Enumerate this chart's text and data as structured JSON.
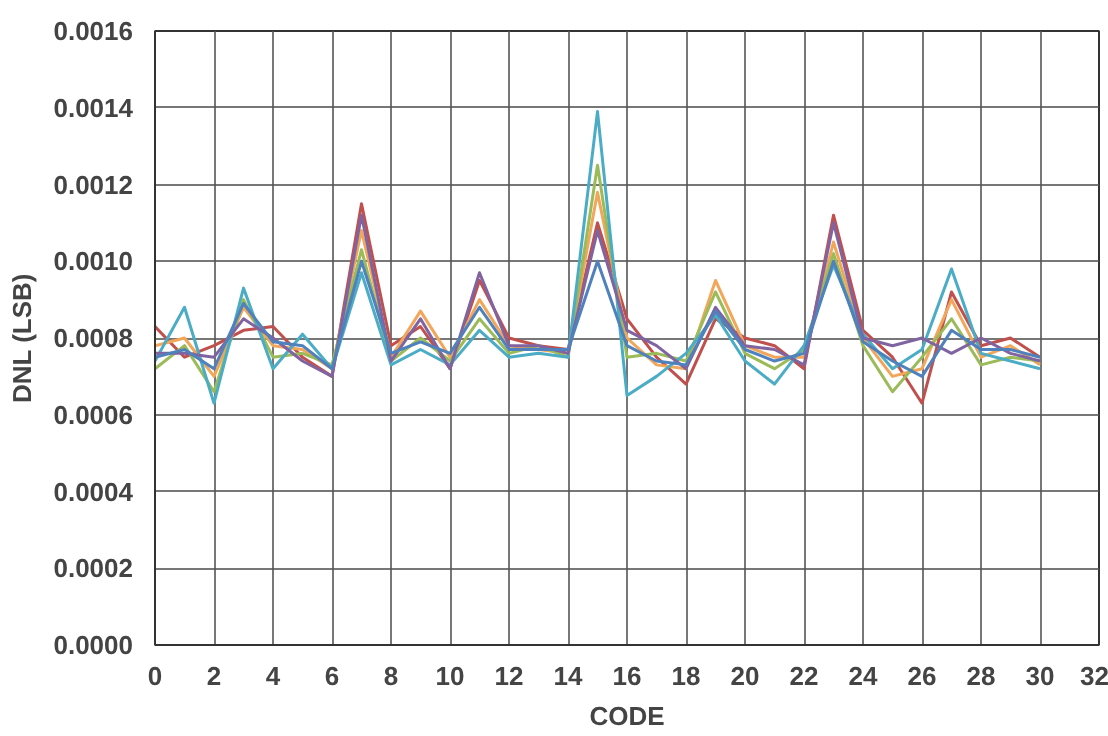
{
  "chart_data": {
    "type": "line",
    "xlabel": "CODE",
    "ylabel": "DNL (LSB)",
    "x": [
      0,
      1,
      2,
      3,
      4,
      5,
      6,
      7,
      8,
      9,
      10,
      11,
      12,
      13,
      14,
      15,
      16,
      17,
      18,
      19,
      20,
      21,
      22,
      23,
      24,
      25,
      26,
      27,
      28,
      29,
      30
    ],
    "xlim": [
      0,
      32
    ],
    "xticks": [
      0,
      2,
      4,
      6,
      8,
      10,
      12,
      14,
      16,
      18,
      20,
      22,
      24,
      26,
      28,
      30,
      32
    ],
    "ylim": [
      0,
      0.0016
    ],
    "yticks": [
      {
        "value": 0,
        "label": "0.0000"
      },
      {
        "value": 0.0002,
        "label": "0.0002"
      },
      {
        "value": 0.0004,
        "label": "0.0004"
      },
      {
        "value": 0.0006,
        "label": "0.0006"
      },
      {
        "value": 0.0008,
        "label": "0.0008"
      },
      {
        "value": 0.001,
        "label": "0.0010"
      },
      {
        "value": 0.0012,
        "label": "0.0012"
      },
      {
        "value": 0.0014,
        "label": "0.0014"
      },
      {
        "value": 0.0016,
        "label": "0.0016"
      }
    ],
    "grid": true,
    "marker": "none",
    "line_style": "solid",
    "series": [
      {
        "color": "#c0504d",
        "values": [
          0.00083,
          0.00075,
          0.00078,
          0.00082,
          0.00083,
          0.00075,
          0.0007,
          0.00115,
          0.00078,
          0.00083,
          0.00072,
          0.00095,
          0.0008,
          0.00078,
          0.00077,
          0.0011,
          0.00085,
          0.00075,
          0.00068,
          0.00085,
          0.0008,
          0.00078,
          0.00072,
          0.00112,
          0.00082,
          0.00075,
          0.00063,
          0.00092,
          0.00078,
          0.0008,
          0.00075
        ]
      },
      {
        "color": "#f2a65a",
        "values": [
          0.00078,
          0.0008,
          0.0007,
          0.00088,
          0.00078,
          0.00077,
          0.00072,
          0.00108,
          0.00075,
          0.00087,
          0.00075,
          0.0009,
          0.00078,
          0.00077,
          0.00076,
          0.00118,
          0.0008,
          0.00073,
          0.00072,
          0.00095,
          0.00078,
          0.00075,
          0.00075,
          0.00105,
          0.0008,
          0.0007,
          0.00072,
          0.0009,
          0.00075,
          0.00078,
          0.00073
        ]
      },
      {
        "color": "#9bbb59",
        "values": [
          0.00072,
          0.00078,
          0.00066,
          0.0009,
          0.00075,
          0.00076,
          0.00073,
          0.00103,
          0.00074,
          0.0008,
          0.00074,
          0.00085,
          0.00076,
          0.00078,
          0.00075,
          0.00125,
          0.00075,
          0.00076,
          0.00074,
          0.00092,
          0.00076,
          0.00072,
          0.00077,
          0.00102,
          0.00078,
          0.00066,
          0.00075,
          0.00085,
          0.00073,
          0.00075,
          0.00074
        ]
      },
      {
        "color": "#4bacc6",
        "values": [
          0.00074,
          0.00088,
          0.00063,
          0.00093,
          0.00072,
          0.00081,
          0.00072,
          0.00097,
          0.00073,
          0.00077,
          0.00073,
          0.00082,
          0.00075,
          0.00076,
          0.00075,
          0.00139,
          0.00065,
          0.0007,
          0.00076,
          0.00086,
          0.00074,
          0.00068,
          0.00078,
          0.00099,
          0.00081,
          0.00072,
          0.00077,
          0.00098,
          0.00076,
          0.00074,
          0.00072
        ]
      },
      {
        "color": "#8064a2",
        "values": [
          0.00076,
          0.00076,
          0.00075,
          0.00085,
          0.0008,
          0.00074,
          0.0007,
          0.00112,
          0.00074,
          0.00085,
          0.00072,
          0.00097,
          0.00078,
          0.00078,
          0.00076,
          0.00108,
          0.00082,
          0.00078,
          0.00072,
          0.00088,
          0.00078,
          0.00077,
          0.00073,
          0.0011,
          0.0008,
          0.00078,
          0.0008,
          0.00076,
          0.0008,
          0.00076,
          0.00074
        ]
      },
      {
        "color": "#4f81bd",
        "values": [
          0.00075,
          0.00077,
          0.00072,
          0.00089,
          0.00079,
          0.00078,
          0.00072,
          0.001,
          0.00076,
          0.00079,
          0.00076,
          0.00088,
          0.00077,
          0.00077,
          0.00077,
          0.001,
          0.00078,
          0.00074,
          0.00073,
          0.00087,
          0.00077,
          0.00074,
          0.00076,
          0.001,
          0.00079,
          0.00074,
          0.0007,
          0.00082,
          0.00077,
          0.00077,
          0.00075
        ]
      }
    ]
  }
}
